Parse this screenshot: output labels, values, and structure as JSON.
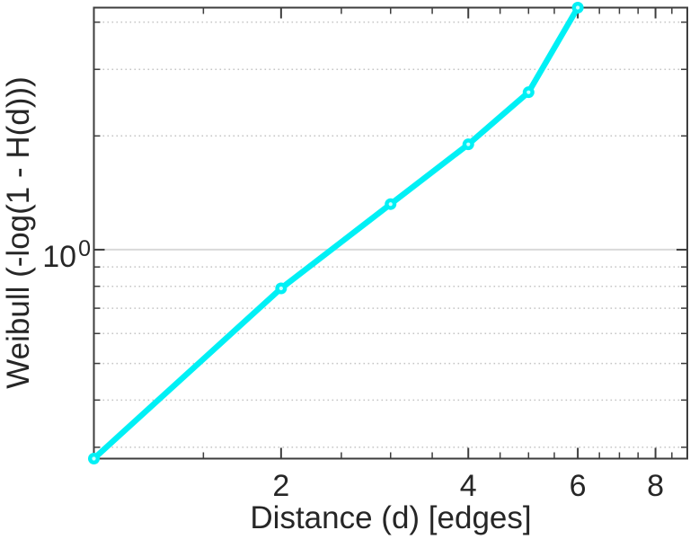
{
  "figure": {
    "background": "#ffffff"
  },
  "chart_data": {
    "type": "line",
    "title": "",
    "xlabel": "Distance (d) [edges]",
    "ylabel": "Weibull (-log(1 - H(d)))",
    "xscale": "log",
    "yscale": "log",
    "xlim": [
      1,
      9
    ],
    "ylim": [
      0.28,
      4.37
    ],
    "grid": {
      "y_major": true,
      "y_minor": true,
      "x_major": false,
      "legend": false
    },
    "x": [
      1,
      2,
      3,
      4,
      5,
      6
    ],
    "y": [
      0.28,
      0.79,
      1.32,
      1.9,
      2.61,
      4.37
    ],
    "x_major_ticks": [
      2,
      4,
      6,
      8
    ],
    "x_major_tick_labels": [
      "2",
      "4",
      "6",
      "8"
    ],
    "x_minor_ticks": [
      1.5,
      2.5,
      3,
      3.5,
      4.5,
      5,
      5.5,
      6.5,
      7,
      7.5,
      8.5,
      9
    ],
    "y_major_ticks": [
      1
    ],
    "y_major_tick_label": {
      "base": "10",
      "exponent": "0"
    },
    "y_minor_ticks": [
      0.3,
      0.4,
      0.5,
      0.6,
      0.7,
      0.8,
      0.9,
      2,
      3,
      4
    ],
    "style": {
      "line_color": "#00f0f5",
      "marker_fill": "#00f0f5",
      "marker_core_color": "#ccffff",
      "axis_color": "#3d3d3d",
      "grid_major_color": "#d9d9d9",
      "grid_minor_color": "#c4c4c4",
      "text_color": "#262626"
    }
  }
}
